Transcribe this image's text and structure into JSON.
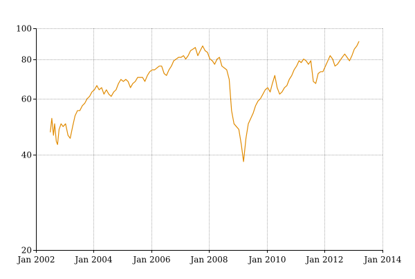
{
  "chart_data": {
    "type": "line",
    "title": "",
    "xlabel": "",
    "ylabel": "",
    "x_scale": "time",
    "y_scale": "log",
    "xlim": [
      "2002-01-01",
      "2014-01-01"
    ],
    "ylim": [
      20,
      100
    ],
    "grid": true,
    "colors": {
      "line": "#e08a00",
      "grid": "#aaaaaa",
      "axis": "#000000"
    },
    "x_ticks": [
      {
        "value": "2002-01-01",
        "label": "Jan 2002"
      },
      {
        "value": "2004-01-01",
        "label": "Jan 2004"
      },
      {
        "value": "2006-01-01",
        "label": "Jan 2006"
      },
      {
        "value": "2008-01-01",
        "label": "Jan 2008"
      },
      {
        "value": "2010-01-01",
        "label": "Jan 2010"
      },
      {
        "value": "2012-01-01",
        "label": "Jan 2012"
      },
      {
        "value": "2014-01-01",
        "label": "Jan 2014"
      }
    ],
    "y_ticks": [
      {
        "value": 20,
        "label": "20"
      },
      {
        "value": 40,
        "label": "40"
      },
      {
        "value": 60,
        "label": "60"
      },
      {
        "value": 80,
        "label": "80"
      },
      {
        "value": 100,
        "label": "100"
      }
    ],
    "series": [
      {
        "points": [
          [
            "2002-07-01",
            47
          ],
          [
            "2002-07-20",
            52
          ],
          [
            "2002-08-10",
            46
          ],
          [
            "2002-08-25",
            50
          ],
          [
            "2002-09-15",
            44
          ],
          [
            "2002-10-01",
            43
          ],
          [
            "2002-10-20",
            48
          ],
          [
            "2002-11-15",
            50
          ],
          [
            "2002-12-10",
            49
          ],
          [
            "2003-01-10",
            50
          ],
          [
            "2003-02-10",
            46
          ],
          [
            "2003-03-10",
            45
          ],
          [
            "2003-04-10",
            49
          ],
          [
            "2003-05-10",
            53
          ],
          [
            "2003-06-10",
            55
          ],
          [
            "2003-07-10",
            55
          ],
          [
            "2003-08-10",
            57
          ],
          [
            "2003-09-10",
            58
          ],
          [
            "2003-10-10",
            60
          ],
          [
            "2003-11-10",
            61
          ],
          [
            "2003-12-10",
            63
          ],
          [
            "2004-01-10",
            64
          ],
          [
            "2004-02-10",
            66
          ],
          [
            "2004-03-10",
            64
          ],
          [
            "2004-04-10",
            65
          ],
          [
            "2004-05-10",
            62
          ],
          [
            "2004-06-10",
            64
          ],
          [
            "2004-07-10",
            62
          ],
          [
            "2004-08-10",
            61
          ],
          [
            "2004-09-10",
            63
          ],
          [
            "2004-10-10",
            64
          ],
          [
            "2004-11-10",
            67
          ],
          [
            "2004-12-10",
            69
          ],
          [
            "2005-01-10",
            68
          ],
          [
            "2005-02-10",
            69
          ],
          [
            "2005-03-10",
            68
          ],
          [
            "2005-04-10",
            65
          ],
          [
            "2005-05-10",
            67
          ],
          [
            "2005-06-10",
            68
          ],
          [
            "2005-07-10",
            70
          ],
          [
            "2005-08-10",
            70
          ],
          [
            "2005-09-10",
            70
          ],
          [
            "2005-10-10",
            68
          ],
          [
            "2005-11-10",
            71
          ],
          [
            "2005-12-10",
            73
          ],
          [
            "2006-01-10",
            74
          ],
          [
            "2006-02-10",
            74
          ],
          [
            "2006-03-10",
            75
          ],
          [
            "2006-04-10",
            76
          ],
          [
            "2006-05-10",
            76
          ],
          [
            "2006-06-10",
            72
          ],
          [
            "2006-07-10",
            71
          ],
          [
            "2006-08-10",
            74
          ],
          [
            "2006-09-10",
            76
          ],
          [
            "2006-10-10",
            79
          ],
          [
            "2006-11-10",
            80
          ],
          [
            "2006-12-10",
            81
          ],
          [
            "2007-01-10",
            81
          ],
          [
            "2007-02-10",
            82
          ],
          [
            "2007-03-10",
            80
          ],
          [
            "2007-04-10",
            82
          ],
          [
            "2007-05-10",
            85
          ],
          [
            "2007-06-10",
            86
          ],
          [
            "2007-07-10",
            87
          ],
          [
            "2007-08-10",
            82
          ],
          [
            "2007-09-10",
            85
          ],
          [
            "2007-10-10",
            88
          ],
          [
            "2007-11-10",
            85
          ],
          [
            "2007-12-10",
            84
          ],
          [
            "2008-01-10",
            80
          ],
          [
            "2008-02-10",
            79
          ],
          [
            "2008-03-10",
            77
          ],
          [
            "2008-04-10",
            80
          ],
          [
            "2008-05-10",
            81
          ],
          [
            "2008-06-10",
            76
          ],
          [
            "2008-07-10",
            75
          ],
          [
            "2008-08-10",
            74
          ],
          [
            "2008-09-10",
            69
          ],
          [
            "2008-10-10",
            55
          ],
          [
            "2008-11-10",
            50
          ],
          [
            "2008-12-10",
            49
          ],
          [
            "2009-01-10",
            48
          ],
          [
            "2009-02-10",
            43
          ],
          [
            "2009-03-10",
            38
          ],
          [
            "2009-04-10",
            45
          ],
          [
            "2009-05-10",
            50
          ],
          [
            "2009-06-10",
            52
          ],
          [
            "2009-07-10",
            54
          ],
          [
            "2009-08-10",
            57
          ],
          [
            "2009-09-10",
            59
          ],
          [
            "2009-10-10",
            60
          ],
          [
            "2009-11-10",
            62
          ],
          [
            "2009-12-10",
            64
          ],
          [
            "2010-01-10",
            65
          ],
          [
            "2010-02-10",
            63
          ],
          [
            "2010-03-10",
            67
          ],
          [
            "2010-04-10",
            71
          ],
          [
            "2010-05-10",
            65
          ],
          [
            "2010-06-10",
            62
          ],
          [
            "2010-07-10",
            63
          ],
          [
            "2010-08-10",
            65
          ],
          [
            "2010-09-10",
            66
          ],
          [
            "2010-10-10",
            69
          ],
          [
            "2010-11-10",
            71
          ],
          [
            "2010-12-10",
            74
          ],
          [
            "2011-01-10",
            76
          ],
          [
            "2011-02-10",
            79
          ],
          [
            "2011-03-10",
            78
          ],
          [
            "2011-04-10",
            80
          ],
          [
            "2011-05-10",
            79
          ],
          [
            "2011-06-10",
            77
          ],
          [
            "2011-07-10",
            79
          ],
          [
            "2011-08-10",
            68
          ],
          [
            "2011-09-10",
            67
          ],
          [
            "2011-10-10",
            72
          ],
          [
            "2011-11-10",
            73
          ],
          [
            "2011-12-10",
            73
          ],
          [
            "2012-01-10",
            76
          ],
          [
            "2012-02-10",
            79
          ],
          [
            "2012-03-10",
            82
          ],
          [
            "2012-04-10",
            80
          ],
          [
            "2012-05-10",
            76
          ],
          [
            "2012-06-10",
            77
          ],
          [
            "2012-07-10",
            79
          ],
          [
            "2012-08-10",
            81
          ],
          [
            "2012-09-10",
            83
          ],
          [
            "2012-10-10",
            81
          ],
          [
            "2012-11-10",
            79
          ],
          [
            "2012-12-10",
            82
          ],
          [
            "2013-01-10",
            86
          ],
          [
            "2013-02-10",
            88
          ],
          [
            "2013-03-10",
            91
          ]
        ]
      }
    ]
  }
}
